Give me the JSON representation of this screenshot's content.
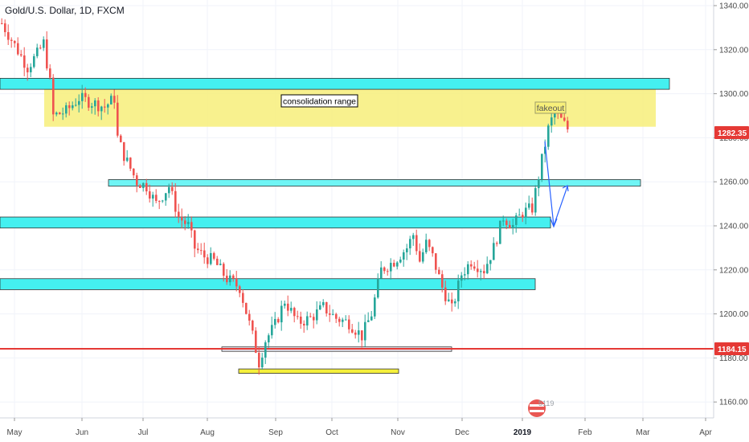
{
  "chart_data": {
    "type": "candlestick",
    "title": "Gold/U.S. Dollar, 1D, FXCM",
    "ylim": [
      1153,
      1342
    ],
    "y_ticks": [
      1160,
      1180,
      1200,
      1220,
      1240,
      1260,
      1280,
      1300,
      1320,
      1340
    ],
    "y_tick_labels": [
      "1160.00",
      "1180.00",
      "1200.00",
      "1220.00",
      "1240.00",
      "1260.00",
      "1280.00",
      "1300.00",
      "1320.00",
      "1340.00"
    ],
    "x_ticks": [
      {
        "label": "May",
        "bold": false
      },
      {
        "label": "Jun",
        "bold": false
      },
      {
        "label": "Jul",
        "bold": false
      },
      {
        "label": "Aug",
        "bold": false
      },
      {
        "label": "Sep",
        "bold": false
      },
      {
        "label": "Oct",
        "bold": false
      },
      {
        "label": "Nov",
        "bold": false
      },
      {
        "label": "Dec",
        "bold": false
      },
      {
        "label": "2019",
        "bold": true
      },
      {
        "label": "Feb",
        "bold": false
      },
      {
        "label": "Mar",
        "bold": false
      },
      {
        "label": "Apr",
        "bold": false
      }
    ],
    "price_anchors": [
      [
        0,
        1332
      ],
      [
        4,
        1322
      ],
      [
        8,
        1312
      ],
      [
        11,
        1318
      ],
      [
        13,
        1323
      ],
      [
        15,
        1305
      ],
      [
        16,
        1290
      ],
      [
        20,
        1292
      ],
      [
        24,
        1298
      ],
      [
        28,
        1296
      ],
      [
        32,
        1294
      ],
      [
        35,
        1298
      ],
      [
        36,
        1280
      ],
      [
        38,
        1272
      ],
      [
        42,
        1260
      ],
      [
        45,
        1258
      ],
      [
        48,
        1250
      ],
      [
        52,
        1258
      ],
      [
        55,
        1244
      ],
      [
        58,
        1240
      ],
      [
        60,
        1230
      ],
      [
        63,
        1226
      ],
      [
        66,
        1224
      ],
      [
        70,
        1216
      ],
      [
        74,
        1212
      ],
      [
        78,
        1190
      ],
      [
        80,
        1178
      ],
      [
        82,
        1188
      ],
      [
        85,
        1195
      ],
      [
        88,
        1206
      ],
      [
        92,
        1196
      ],
      [
        96,
        1198
      ],
      [
        100,
        1203
      ],
      [
        104,
        1198
      ],
      [
        108,
        1196
      ],
      [
        112,
        1190
      ],
      [
        115,
        1200
      ],
      [
        118,
        1220
      ],
      [
        122,
        1224
      ],
      [
        126,
        1230
      ],
      [
        128,
        1236
      ],
      [
        130,
        1224
      ],
      [
        132,
        1232
      ],
      [
        134,
        1226
      ],
      [
        137,
        1212
      ],
      [
        140,
        1202
      ],
      [
        143,
        1218
      ],
      [
        146,
        1224
      ],
      [
        150,
        1220
      ],
      [
        153,
        1230
      ],
      [
        156,
        1244
      ],
      [
        159,
        1240
      ],
      [
        162,
        1246
      ],
      [
        165,
        1248
      ],
      [
        168,
        1270
      ],
      [
        170,
        1284
      ],
      [
        172,
        1292
      ],
      [
        174,
        1288
      ],
      [
        176,
        1284
      ]
    ],
    "current_price": {
      "value": 1282.35,
      "label": "1282.35",
      "color": "#e53935"
    },
    "support_line": {
      "value": 1184.15,
      "label": "1184.15",
      "color": "#e53935"
    },
    "zones": [
      {
        "name": "consolidation range",
        "color": "#f7ef7a",
        "y_top": 1302,
        "y_bottom": 1285
      },
      {
        "name": "resistance-1300",
        "color": "#44f0f0",
        "y_top": 1307,
        "y_bottom": 1302
      },
      {
        "name": "zone-1260",
        "color": "#6ff5f5",
        "y_top": 1261,
        "y_bottom": 1258
      },
      {
        "name": "zone-1240",
        "color": "#44f0f0",
        "y_top": 1244,
        "y_bottom": 1239
      },
      {
        "name": "zone-1215",
        "color": "#44f0f0",
        "y_top": 1216,
        "y_bottom": 1211
      },
      {
        "name": "bottom-box",
        "color": "#eae6f0",
        "y_top": 1185,
        "y_bottom": 1183
      },
      {
        "name": "yellow-bar",
        "color": "#f5f03c",
        "y_top": 1175,
        "y_bottom": 1173
      }
    ],
    "annotations": [
      {
        "text": "consolidation range"
      },
      {
        "text": "fakeout"
      }
    ],
    "colors": {
      "up": "#26a69a",
      "down": "#ef5350",
      "arrow": "#2962ff",
      "grid": "#f0f3fa"
    }
  },
  "watermark_text": "5119"
}
